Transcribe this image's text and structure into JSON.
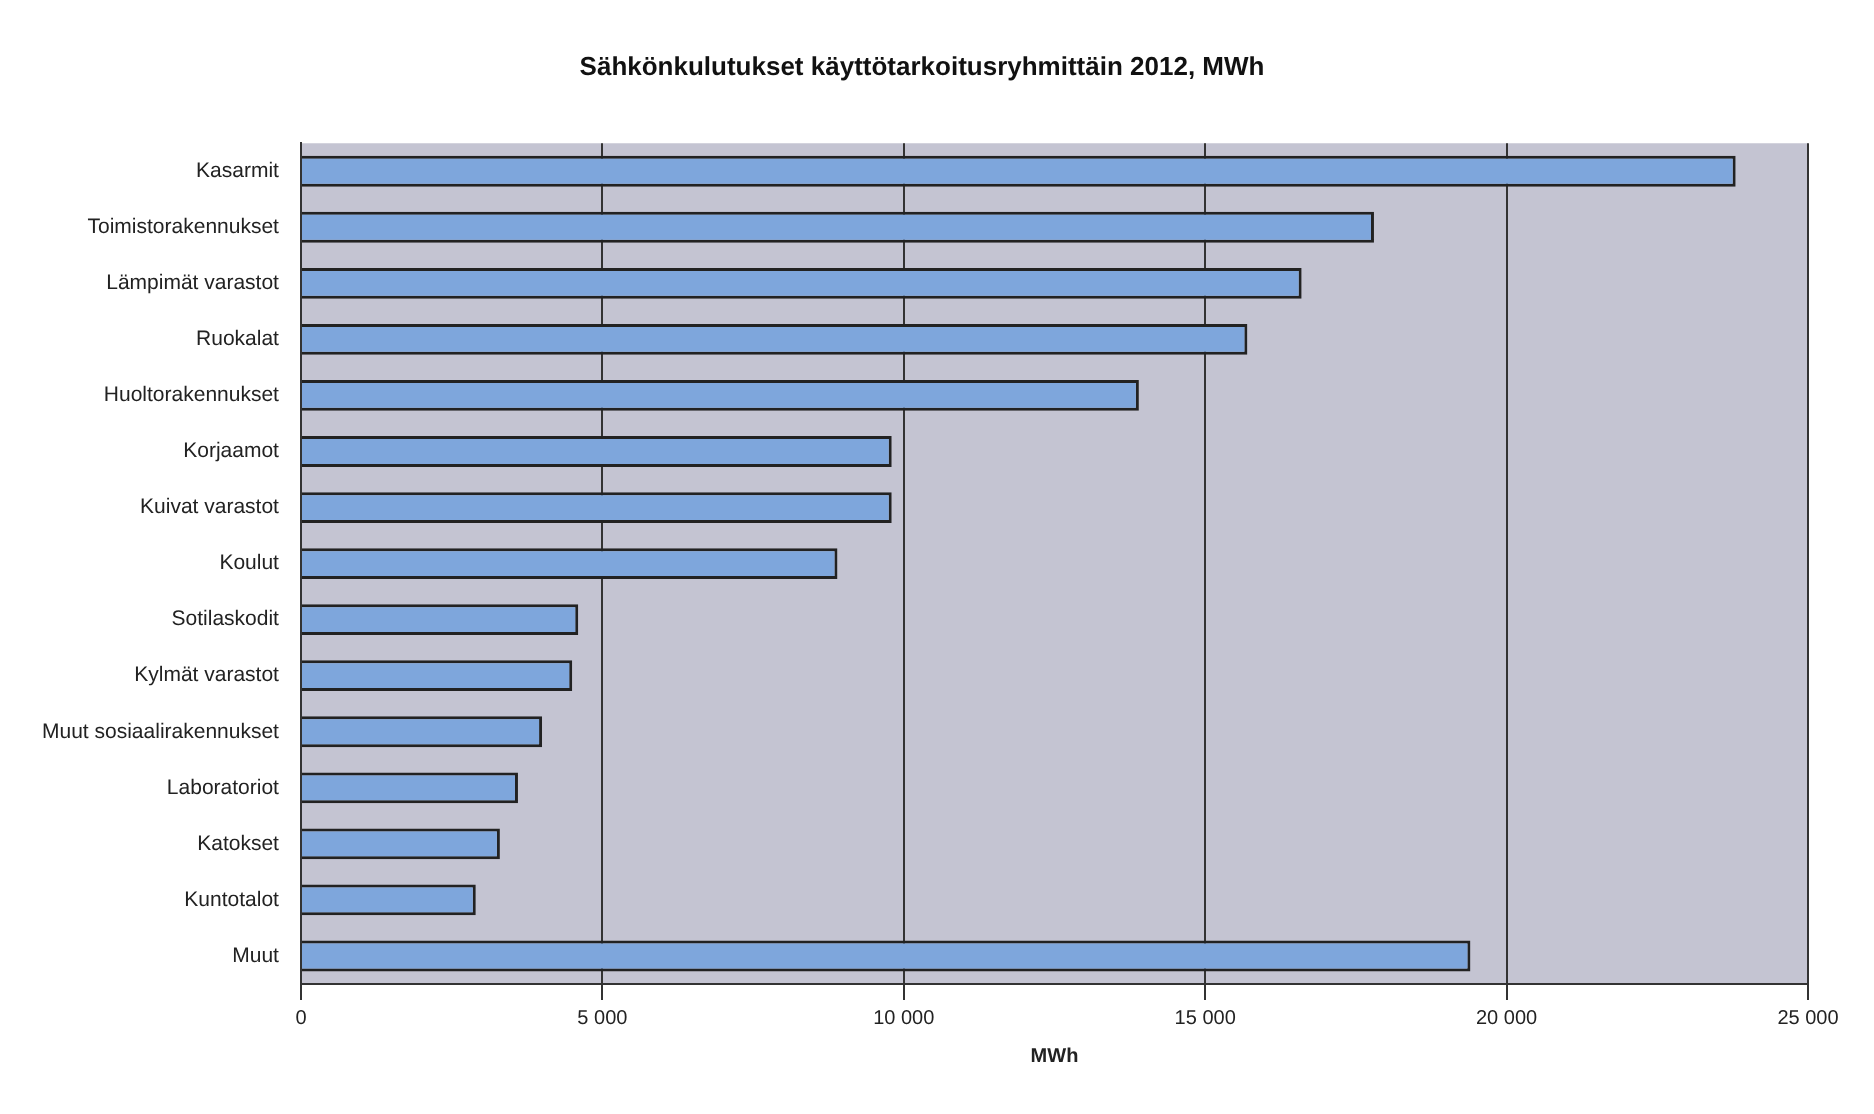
{
  "chart_data": {
    "type": "bar",
    "orientation": "horizontal",
    "title": "Sähkönkulutukset käyttötarkoitusryhmittäin 2012, MWh",
    "xlabel": "MWh",
    "categories": [
      "Kasarmit",
      "Toimistorakennukset",
      "Lämpimät varastot",
      "Ruokalat",
      "Huoltorakennukset",
      "Korjaamot",
      "Kuivat varastot",
      "Koulut",
      "Sotilaskodit",
      "Kylmät varastot",
      "Muut sosiaalirakennukset",
      "Laboratoriot",
      "Katokset",
      "Kuntotalot",
      "Muut"
    ],
    "values": [
      23800,
      17800,
      16600,
      15700,
      13900,
      9800,
      9800,
      8900,
      4600,
      4500,
      4000,
      3600,
      3300,
      2900,
      19400
    ],
    "color": "#7ea6dc",
    "xlim": [
      0,
      25000
    ],
    "xticks": [
      {
        "value": 0,
        "label": "0"
      },
      {
        "value": 5000,
        "label": "5 000"
      },
      {
        "value": 10000,
        "label": "10 000"
      },
      {
        "value": 15000,
        "label": "15 000"
      },
      {
        "value": 20000,
        "label": "20 000"
      },
      {
        "value": 25000,
        "label": "25 000"
      }
    ],
    "grid": "x",
    "legend": false
  }
}
